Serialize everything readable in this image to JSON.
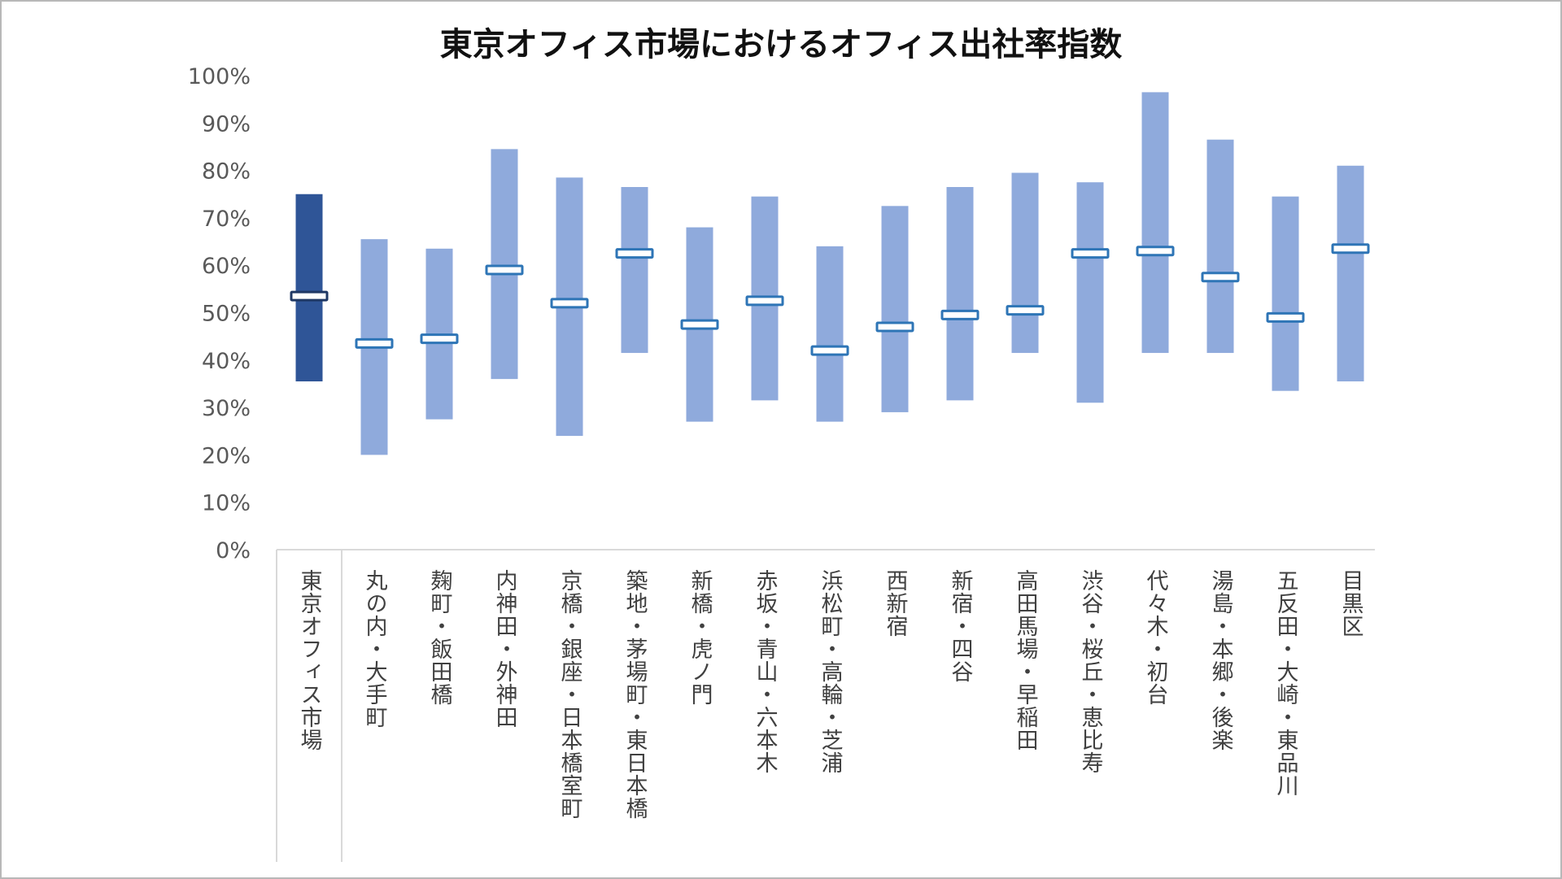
{
  "chart_data": {
    "type": "floating-bar-range",
    "title": "東京オフィス市場におけるオフィス出社率指数",
    "xlabel": "",
    "ylabel": "",
    "ylim": [
      0,
      100
    ],
    "y_ticks": [
      "0%",
      "10%",
      "20%",
      "30%",
      "40%",
      "50%",
      "60%",
      "70%",
      "80%",
      "90%",
      "100%"
    ],
    "grid": false,
    "legend": "none",
    "categories": [
      "東京オフィス市場",
      "丸の内・大手町",
      "麹町・飯田橋",
      "内神田・外神田",
      "京橋・銀座・日本橋室町",
      "築地・茅場町・東日本橋",
      "新橋・虎ノ門",
      "赤坂・青山・六本木",
      "浜松町・高輪・芝浦",
      "西新宿",
      "新宿・四谷",
      "高田馬場・早稲田",
      "渋谷・桜丘・恵比寿",
      "代々木・初台",
      "湯島・本郷・後楽",
      "五反田・大崎・東品川",
      "目黒区"
    ],
    "series": [
      {
        "role": "high",
        "values": [
          75,
          65.5,
          63.5,
          84.5,
          78.5,
          76.5,
          68,
          74.5,
          64,
          72.5,
          76.5,
          79.5,
          77.5,
          96.5,
          86.5,
          74.5,
          81
        ]
      },
      {
        "role": "low",
        "values": [
          35.5,
          20,
          27.5,
          36,
          24,
          41.5,
          27,
          31.5,
          27,
          29,
          31.5,
          41.5,
          31,
          41.5,
          41.5,
          33.5,
          35.5
        ]
      },
      {
        "role": "median",
        "values": [
          53.5,
          43.5,
          44.5,
          59,
          52,
          62.5,
          47.5,
          52.5,
          42,
          47,
          49.5,
          50.5,
          62.5,
          63,
          57.5,
          49,
          63.5
        ]
      }
    ],
    "colors": {
      "highlight_bar": "#2F5597",
      "bar": "#8FAADC",
      "marker_border": "#2E75B6",
      "highlight_marker_border": "#1F3864",
      "axis": "#D9D9D9"
    }
  }
}
